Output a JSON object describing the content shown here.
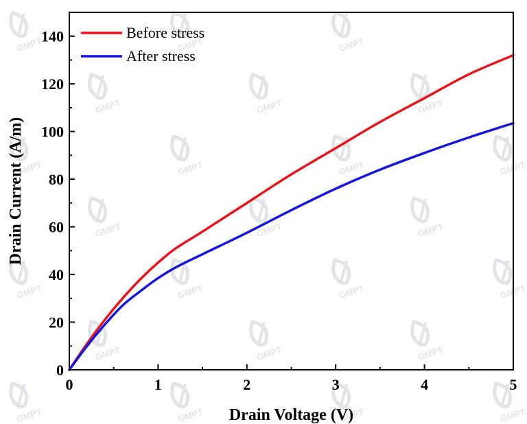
{
  "chart_data": {
    "type": "line",
    "xlabel": "Drain Voltage (V)",
    "ylabel": "Drain Current (A/m)",
    "xlim": [
      0,
      5
    ],
    "ylim": [
      0,
      150
    ],
    "x_ticks": [
      0,
      1,
      2,
      3,
      4,
      5
    ],
    "y_ticks": [
      0,
      20,
      40,
      60,
      80,
      100,
      120,
      140
    ],
    "grid": false,
    "legend_position": "top-left",
    "series": [
      {
        "name": "Before stress",
        "color": "#e8141a",
        "x": [
          0,
          0.2,
          0.4,
          0.6,
          0.8,
          1.0,
          1.2,
          1.5,
          2.0,
          2.5,
          3.0,
          3.5,
          4.0,
          4.5,
          5.0
        ],
        "y": [
          0,
          11,
          21,
          30,
          38,
          45,
          51,
          58,
          70,
          82,
          93,
          104,
          114,
          124,
          132
        ]
      },
      {
        "name": "After stress",
        "color": "#1515e0",
        "x": [
          0,
          0.2,
          0.4,
          0.6,
          0.8,
          1.0,
          1.2,
          1.5,
          2.0,
          2.5,
          3.0,
          3.5,
          4.0,
          4.5,
          5.0
        ],
        "y": [
          0,
          10,
          19,
          27,
          33,
          38.5,
          43,
          48.5,
          57.5,
          67,
          76,
          84,
          91,
          97.5,
          103.5
        ]
      }
    ]
  },
  "watermark": {
    "text": "GMPT",
    "color": "#e2e4e8"
  }
}
